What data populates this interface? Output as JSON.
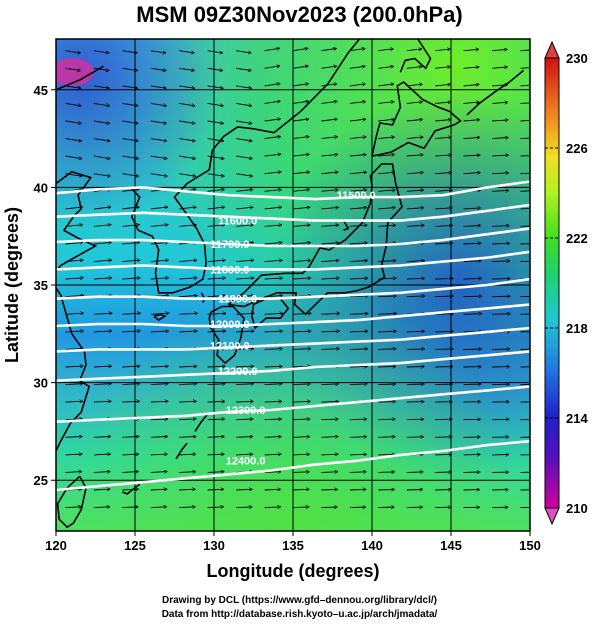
{
  "title": "MSM 09Z30Nov2023 (200.0hPa)",
  "chart_data": {
    "type": "heatmap",
    "title": "MSM 09Z30Nov2023 (200.0hPa)",
    "xlabel": "Longitude (degrees)",
    "ylabel": "Latitude  (degrees)",
    "xlim": [
      120,
      150
    ],
    "ylim": [
      22.4,
      47.6
    ],
    "xticks": [
      120,
      125,
      130,
      135,
      140,
      145,
      150
    ],
    "yticks": [
      25,
      30,
      35,
      40,
      45
    ],
    "grid": true,
    "colorbar": {
      "min": 210,
      "max": 230,
      "tick_labels": [
        "230",
        "226",
        "222",
        "218",
        "214",
        "210"
      ],
      "tick_values": [
        230,
        226,
        222,
        218,
        214,
        210
      ],
      "colors": [
        "#d0009c",
        "#3030d0",
        "#20c0d0",
        "#20d060",
        "#a0f020",
        "#f0e020",
        "#f08020",
        "#d01010"
      ]
    },
    "contours": [
      {
        "label": "11500.0",
        "y": [
          39.7,
          39.9,
          40.0,
          39.8,
          39.6,
          39.5,
          39.4,
          39.5,
          39.5,
          39.6,
          40.0,
          40.3
        ]
      },
      {
        "label": "11600.0",
        "y": [
          38.5,
          38.6,
          38.7,
          38.6,
          38.5,
          38.4,
          38.3,
          38.3,
          38.3,
          38.5,
          38.8,
          39.1
        ]
      },
      {
        "label": "11700.0",
        "y": [
          37.2,
          37.3,
          37.3,
          37.2,
          37.1,
          37.0,
          37.0,
          37.0,
          37.1,
          37.3,
          37.6,
          37.9
        ]
      },
      {
        "label": "11800.0",
        "y": [
          35.8,
          35.9,
          36.0,
          35.9,
          35.8,
          35.8,
          35.8,
          35.9,
          36.0,
          36.2,
          36.4,
          36.7
        ]
      },
      {
        "label": "11900.0",
        "y": [
          34.3,
          34.4,
          34.4,
          34.3,
          34.3,
          34.3,
          34.4,
          34.5,
          34.6,
          34.8,
          35.0,
          35.3
        ]
      },
      {
        "label": "12000.0",
        "y": [
          32.9,
          33.0,
          33.0,
          32.9,
          32.9,
          33.0,
          33.1,
          33.2,
          33.4,
          33.6,
          33.8,
          34.0
        ]
      },
      {
        "label": "12100.0",
        "y": [
          31.6,
          31.7,
          31.7,
          31.7,
          31.8,
          31.9,
          32.0,
          32.1,
          32.2,
          32.4,
          32.6,
          32.8
        ]
      },
      {
        "label": "12200.0",
        "y": [
          30.1,
          30.2,
          30.3,
          30.4,
          30.5,
          30.6,
          30.8,
          30.9,
          31.0,
          31.2,
          31.4,
          31.6
        ]
      },
      {
        "label": "12300.0",
        "y": [
          28.0,
          28.1,
          28.2,
          28.3,
          28.5,
          28.6,
          28.8,
          29.0,
          29.2,
          29.4,
          29.6,
          29.8
        ]
      },
      {
        "label": "12400.0",
        "y": [
          24.5,
          24.7,
          24.9,
          25.1,
          25.3,
          25.5,
          25.8,
          26.0,
          26.3,
          26.5,
          26.8,
          27.0
        ]
      }
    ],
    "contour_x": [
      120,
      122.7,
      125.5,
      128.2,
      130.9,
      133.6,
      136.4,
      139.1,
      141.8,
      144.5,
      147.3,
      150
    ],
    "contour_labels": [
      {
        "text": "11500.0",
        "x": 139.0,
        "y": 39.6
      },
      {
        "text": "11600.0",
        "x": 131.5,
        "y": 38.3
      },
      {
        "text": "11700.0",
        "x": 131.0,
        "y": 37.1
      },
      {
        "text": "11800.0",
        "x": 131.0,
        "y": 35.8
      },
      {
        "text": "11900.0",
        "x": 131.5,
        "y": 34.3
      },
      {
        "text": "12000.0",
        "x": 131.0,
        "y": 33.0
      },
      {
        "text": "12100.0",
        "x": 131.0,
        "y": 31.9
      },
      {
        "text": "12200.0",
        "x": 131.5,
        "y": 30.6
      },
      {
        "text": "12300.0",
        "x": 132.0,
        "y": 28.6
      },
      {
        "text": "12400.0",
        "x": 132.0,
        "y": 26.0
      }
    ]
  },
  "credits": {
    "line1": "Drawing by DCL (https://www.gfd–dennou.org/library/dcl/)",
    "line2": "Data from http://database.rish.kyoto–u.ac.jp/arch/jmadata/"
  }
}
